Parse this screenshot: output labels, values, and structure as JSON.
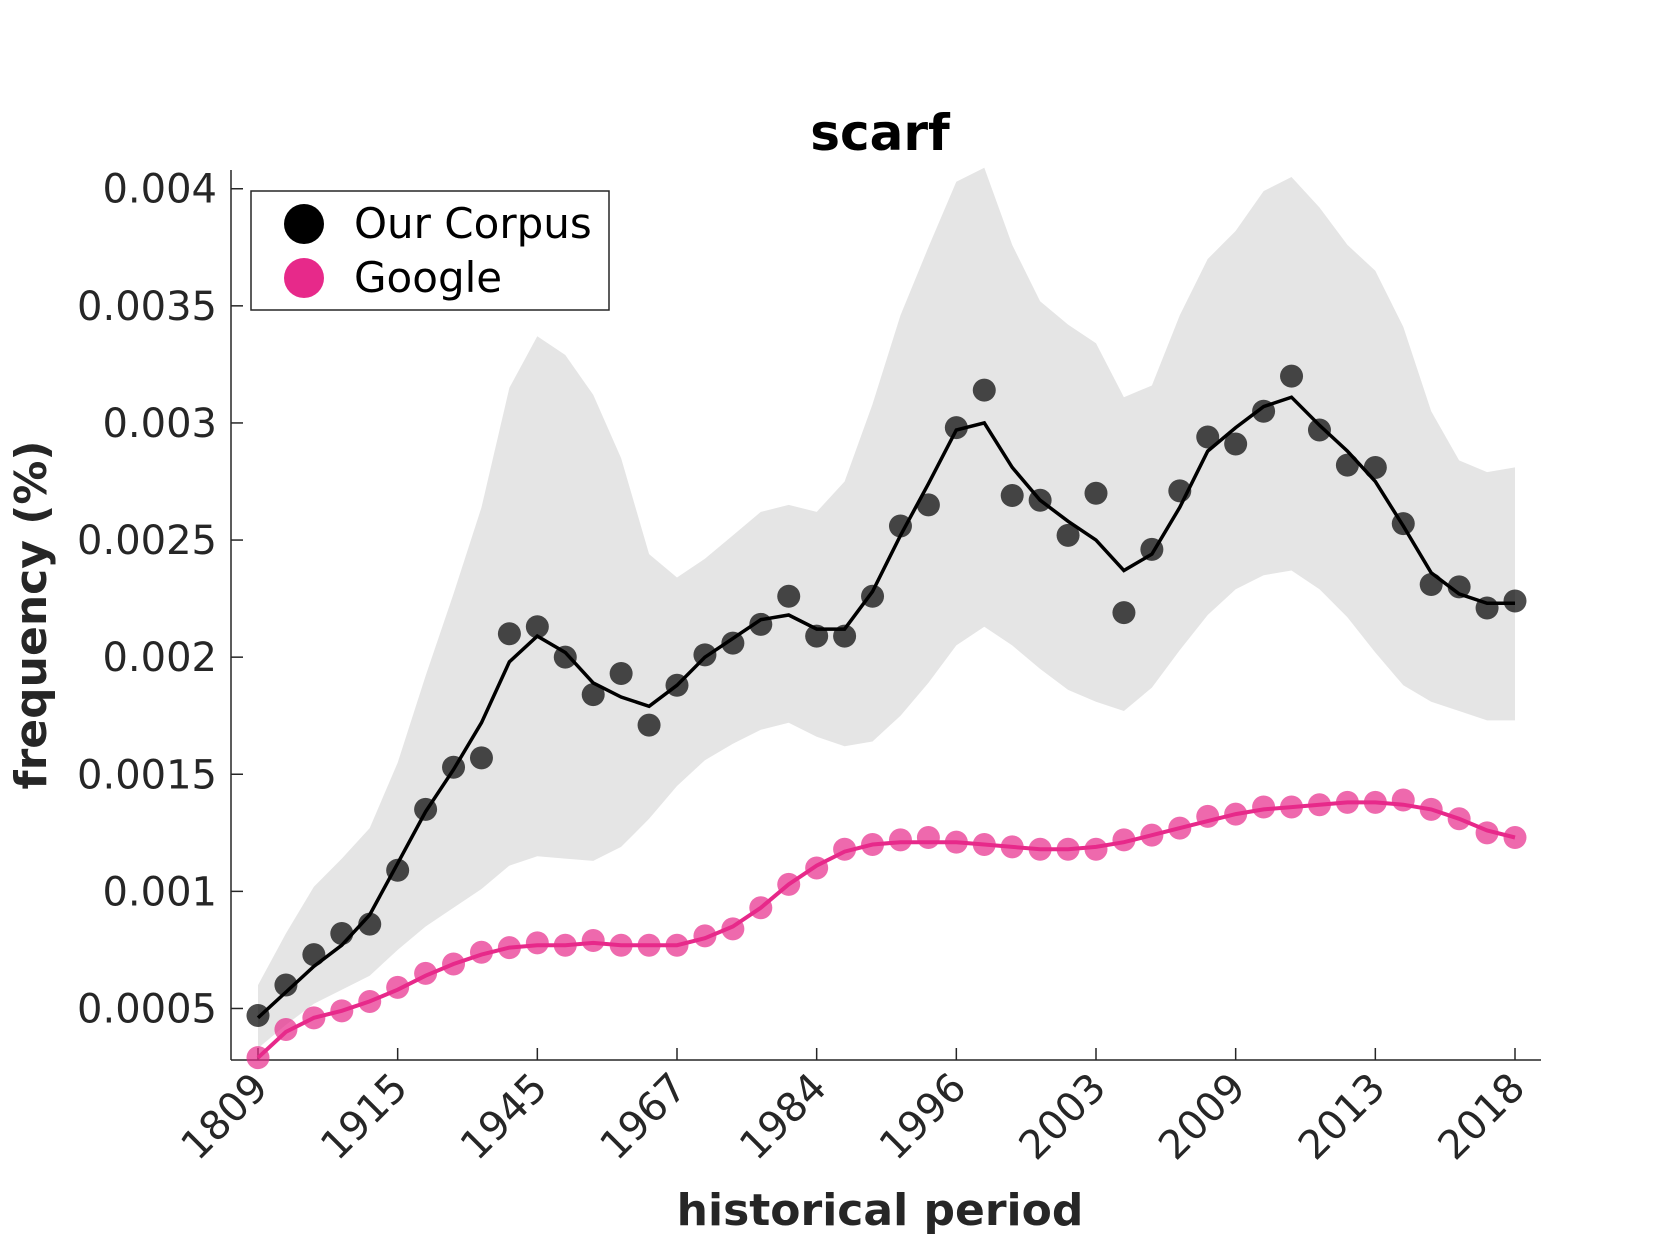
{
  "chart_data": {
    "type": "line",
    "title": "scarf",
    "xlabel": "historical period",
    "ylabel": "frequency (%)",
    "ylim": [
      0.00028,
      0.00408
    ],
    "x_tick_labels": [
      "1809",
      "1915",
      "1945",
      "1967",
      "1984",
      "1996",
      "2003",
      "2009",
      "2013",
      "2018"
    ],
    "y_tick_labels": [
      "0.0005",
      "0.001",
      "0.0015",
      "0.002",
      "0.0025",
      "0.003",
      "0.0035",
      "0.004"
    ],
    "y_ticks": [
      0.0005,
      0.001,
      0.0015,
      0.002,
      0.0025,
      0.003,
      0.0035,
      0.004
    ],
    "legend": {
      "placement": "top-left",
      "entries": [
        "Our Corpus",
        "Google"
      ]
    },
    "colors": {
      "corpus": "#000000",
      "google": "#e7298a",
      "band": "#e5e5e5"
    },
    "series": [
      {
        "name": "Our Corpus",
        "points": [
          0.00047,
          0.0006,
          0.00073,
          0.00082,
          0.00086,
          0.00109,
          0.00135,
          0.00153,
          0.00157,
          0.0021,
          0.00213,
          0.002,
          0.00184,
          0.00193,
          0.00171,
          0.00188,
          0.00201,
          0.00206,
          0.00214,
          0.00226,
          0.00209,
          0.00209,
          0.00226,
          0.00256,
          0.00265,
          0.00298,
          0.00314,
          0.00269,
          0.00267,
          0.00252,
          0.0027,
          0.00219,
          0.00246,
          0.00271,
          0.00294,
          0.00291,
          0.00305,
          0.0032,
          0.00297,
          0.00282,
          0.00281,
          0.00257,
          0.00231,
          0.0023,
          0.00221,
          0.00224
        ],
        "trend": [
          0.00046,
          0.00057,
          0.00068,
          0.00077,
          0.0009,
          0.00112,
          0.00134,
          0.00152,
          0.00172,
          0.00198,
          0.00209,
          0.00202,
          0.00189,
          0.00183,
          0.00179,
          0.00188,
          0.002,
          0.00208,
          0.00216,
          0.00218,
          0.00212,
          0.00212,
          0.00228,
          0.00252,
          0.00274,
          0.00297,
          0.003,
          0.00281,
          0.00267,
          0.00258,
          0.0025,
          0.00237,
          0.00244,
          0.00264,
          0.00288,
          0.00298,
          0.00307,
          0.00311,
          0.00299,
          0.00288,
          0.00275,
          0.00256,
          0.00236,
          0.00227,
          0.00223,
          0.00223
        ],
        "band_upper": [
          0.0006,
          0.00082,
          0.00102,
          0.00114,
          0.00127,
          0.00155,
          0.00192,
          0.00227,
          0.00264,
          0.00315,
          0.00337,
          0.00329,
          0.00312,
          0.00285,
          0.00244,
          0.00234,
          0.00242,
          0.00252,
          0.00262,
          0.00265,
          0.00262,
          0.00275,
          0.00308,
          0.00346,
          0.00375,
          0.00403,
          0.00409,
          0.00376,
          0.00352,
          0.00342,
          0.00334,
          0.00311,
          0.00316,
          0.00346,
          0.0037,
          0.00382,
          0.00399,
          0.00405,
          0.00392,
          0.00376,
          0.00365,
          0.00341,
          0.00305,
          0.00284,
          0.00279,
          0.00281
        ],
        "band_lower": [
          0.00033,
          0.00043,
          0.00052,
          0.00058,
          0.00064,
          0.00075,
          0.00085,
          0.00093,
          0.00101,
          0.00111,
          0.00115,
          0.00114,
          0.00113,
          0.00119,
          0.00131,
          0.00145,
          0.00156,
          0.00163,
          0.00169,
          0.00172,
          0.00166,
          0.00162,
          0.00164,
          0.00175,
          0.00189,
          0.00205,
          0.00213,
          0.00205,
          0.00195,
          0.00186,
          0.00181,
          0.00177,
          0.00187,
          0.00203,
          0.00218,
          0.00229,
          0.00235,
          0.00237,
          0.00229,
          0.00217,
          0.00202,
          0.00188,
          0.00181,
          0.00177,
          0.00173,
          0.00173
        ]
      },
      {
        "name": "Google",
        "points": [
          0.00029,
          0.00041,
          0.00046,
          0.00049,
          0.00053,
          0.00059,
          0.00065,
          0.00069,
          0.00074,
          0.00076,
          0.00078,
          0.00077,
          0.00079,
          0.00077,
          0.00077,
          0.00077,
          0.00081,
          0.00084,
          0.00093,
          0.00103,
          0.0011,
          0.00118,
          0.0012,
          0.00122,
          0.00123,
          0.00121,
          0.0012,
          0.00119,
          0.00118,
          0.00118,
          0.00118,
          0.00122,
          0.00124,
          0.00127,
          0.00132,
          0.00133,
          0.00136,
          0.00136,
          0.00137,
          0.00138,
          0.00138,
          0.00139,
          0.00135,
          0.00131,
          0.00125,
          0.00123
        ],
        "trend": [
          0.00029,
          0.0004,
          0.00046,
          0.00049,
          0.00053,
          0.00058,
          0.00064,
          0.00069,
          0.00073,
          0.00076,
          0.00077,
          0.00077,
          0.00078,
          0.00077,
          0.00077,
          0.00077,
          0.0008,
          0.00085,
          0.00093,
          0.00103,
          0.00111,
          0.00117,
          0.0012,
          0.00121,
          0.00121,
          0.00121,
          0.0012,
          0.00119,
          0.00118,
          0.00118,
          0.00119,
          0.00121,
          0.00124,
          0.00127,
          0.0013,
          0.00133,
          0.00135,
          0.00136,
          0.00137,
          0.00138,
          0.00138,
          0.00137,
          0.00135,
          0.00131,
          0.00126,
          0.00123
        ]
      }
    ]
  }
}
